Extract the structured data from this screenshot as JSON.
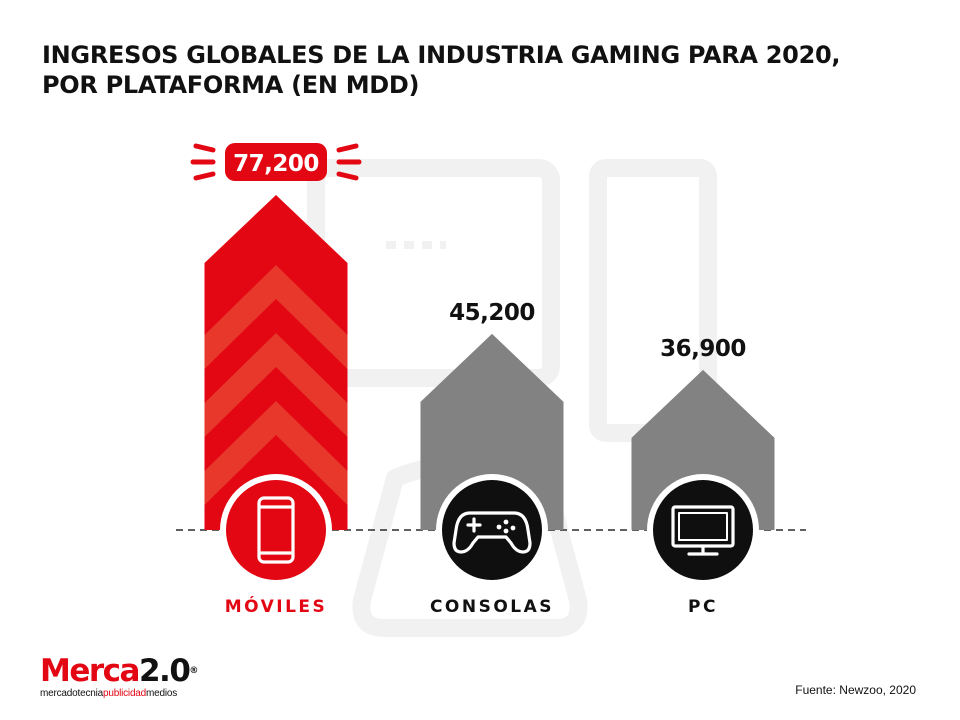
{
  "title": {
    "line1": "INGRESOS GLOBALES DE LA INDUSTRIA GAMING PARA 2020,",
    "line2": "POR PLATAFORMA (EN MDD)"
  },
  "chart_data": {
    "type": "bar",
    "title": "INGRESOS GLOBALES DE LA INDUSTRIA GAMING PARA 2020, POR PLATAFORMA (EN MDD)",
    "categories": [
      "MÓVILES",
      "CONSOLAS",
      "PC"
    ],
    "values": [
      77200,
      45200,
      36900
    ],
    "value_labels": [
      "77,200",
      "45,200",
      "36,900"
    ],
    "icons": [
      "mobile-phone-icon",
      "gamepad-icon",
      "monitor-icon"
    ],
    "highlight_index": 0,
    "xlabel": "",
    "ylabel": "",
    "ylim": [
      0,
      77200
    ],
    "grid": false,
    "legend": "none"
  },
  "colors": {
    "highlight": "#e30613",
    "highlight_stripe": "#e7382b",
    "bar": "#828282",
    "icon_dark": "#0f0f0f",
    "text": "#111111",
    "watermark": "#f1f1f1"
  },
  "footer": {
    "logo_merca": "Merca",
    "logo_num": "2.0",
    "logo_tm": "®",
    "logo_sub_a": "mercadotecnia",
    "logo_sub_b": "publicidad",
    "logo_sub_c": "medios",
    "source": "Fuente: Newzoo, 2020"
  }
}
